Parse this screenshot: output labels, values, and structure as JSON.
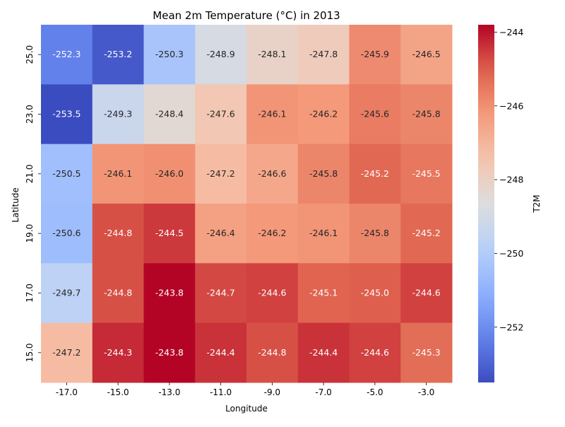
{
  "chart_data": {
    "type": "heatmap",
    "title": "Mean 2m Temperature (°C) in 2013",
    "xlabel": "Longitude",
    "ylabel": "Latitude",
    "colorbar_label": "T2M",
    "colormap": "coolwarm",
    "x_categories": [
      "-17.0",
      "-15.0",
      "-13.0",
      "-11.0",
      "-9.0",
      "-7.0",
      "-5.0",
      "-3.0"
    ],
    "y_categories": [
      "25.0",
      "23.0",
      "21.0",
      "19.0",
      "17.0",
      "15.0"
    ],
    "values": [
      [
        -252.3,
        -253.2,
        -250.3,
        -248.9,
        -248.1,
        -247.8,
        -245.9,
        -246.5
      ],
      [
        -253.5,
        -249.3,
        -248.4,
        -247.6,
        -246.1,
        -246.2,
        -245.6,
        -245.8
      ],
      [
        -250.5,
        -246.1,
        -246.0,
        -247.2,
        -246.6,
        -245.8,
        -245.2,
        -245.5
      ],
      [
        -250.6,
        -244.8,
        -244.5,
        -246.4,
        -246.2,
        -246.1,
        -245.8,
        -245.2
      ],
      [
        -249.7,
        -244.8,
        -243.8,
        -244.7,
        -244.6,
        -245.1,
        -245.0,
        -244.6
      ],
      [
        -247.2,
        -244.3,
        -243.8,
        -244.4,
        -244.8,
        -244.4,
        -244.6,
        -245.3
      ]
    ],
    "color_range": [
      -253.5,
      -243.8
    ],
    "colorbar_ticks": [
      {
        "value": -244,
        "label": "−244"
      },
      {
        "value": -246,
        "label": "−246"
      },
      {
        "value": -248,
        "label": "−248"
      },
      {
        "value": -250,
        "label": "−250"
      },
      {
        "value": -252,
        "label": "−252"
      }
    ]
  }
}
